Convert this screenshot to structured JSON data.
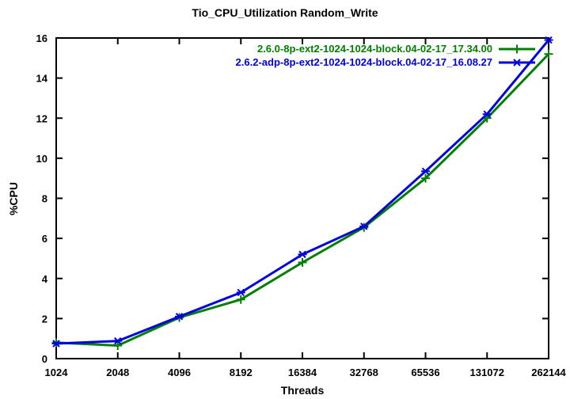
{
  "chart_data": {
    "type": "line",
    "title": "Tio_CPU_Utilization Random_Write",
    "xlabel": "Threads",
    "ylabel": "%CPU",
    "x_scale": "log2",
    "grid": false,
    "legend_position": "top-right-inside",
    "categories": [
      1024,
      2048,
      4096,
      8192,
      16384,
      32768,
      65536,
      131072,
      262144
    ],
    "x_tick_labels": [
      "1024",
      "2048",
      "4096",
      "8192",
      "16384",
      "32768",
      "65536",
      "131072",
      "262144"
    ],
    "y_ticks": [
      0,
      2,
      4,
      6,
      8,
      10,
      12,
      14,
      16
    ],
    "ylim": [
      0,
      16
    ],
    "axis_color": "#000000",
    "background_color": "#ffffff",
    "series": [
      {
        "name": "2.6.0-8p-ext2-1024-1024-block.04-02-17_17.34.00",
        "color": "#008000",
        "marker": "plus",
        "values": [
          0.8,
          0.65,
          2.05,
          2.95,
          4.8,
          6.55,
          9.0,
          12.0,
          15.2
        ]
      },
      {
        "name": "2.6.2-adp-8p-ext2-1024-1024-block.04-02-17_16.08.27",
        "color": "#0000e0",
        "marker": "star",
        "values": [
          0.75,
          0.88,
          2.1,
          3.3,
          5.2,
          6.6,
          9.35,
          12.2,
          15.9
        ]
      }
    ]
  }
}
